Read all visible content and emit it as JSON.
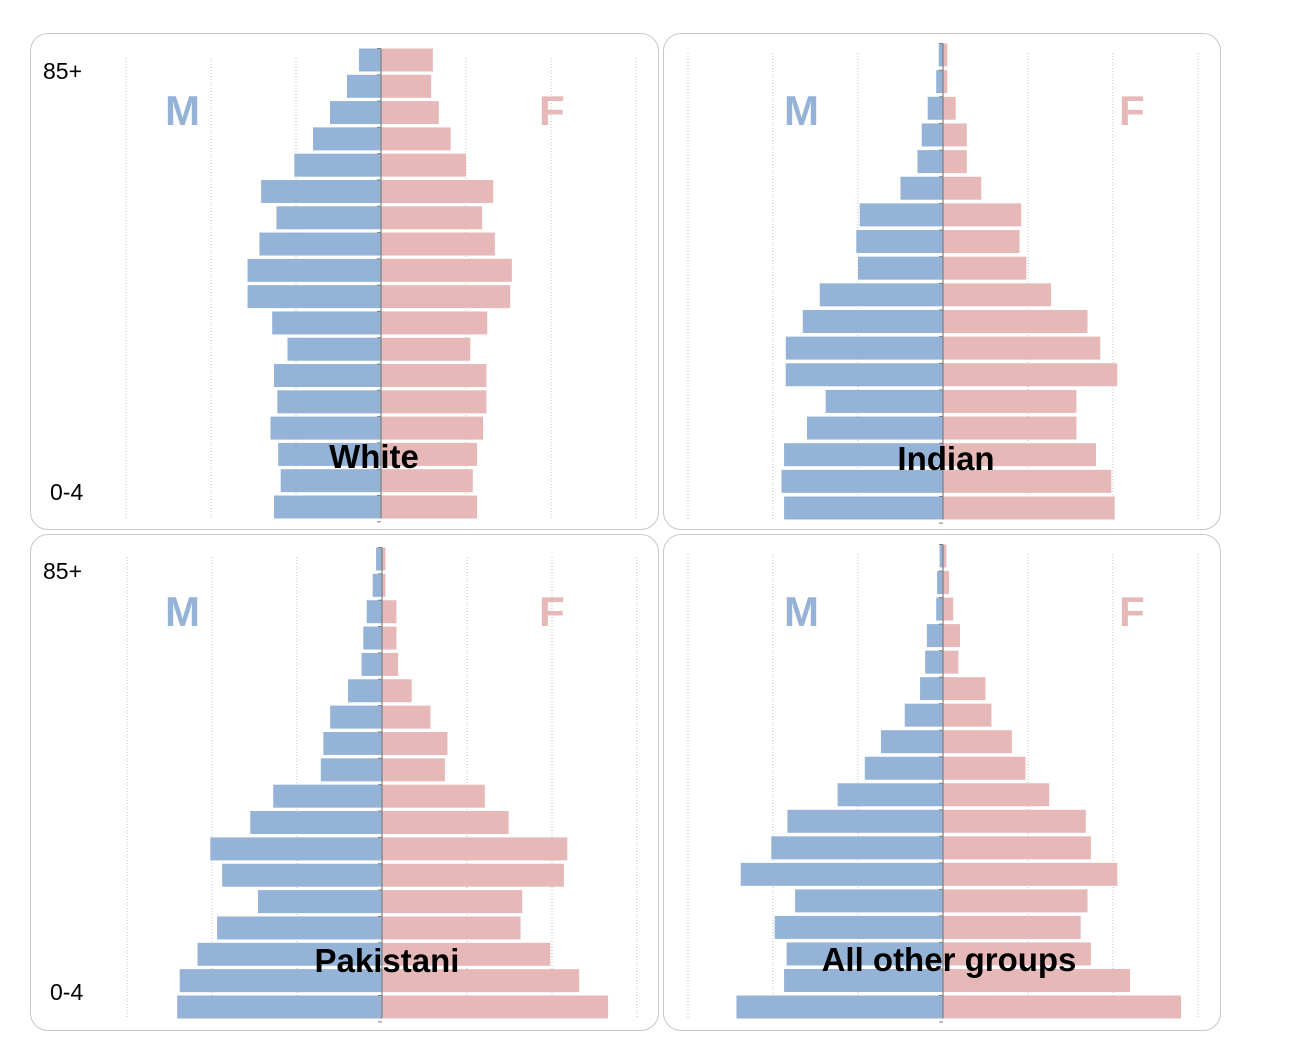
{
  "age_labels": {
    "top": "85+",
    "bottom": "0-4"
  },
  "sex_labels": {
    "male": "M",
    "female": "F"
  },
  "colors": {
    "male": "#95b3d7",
    "female": "#e6b9b8",
    "grid": "#bfbfbf",
    "axis": "#7f7f7f"
  },
  "chart_data": [
    {
      "type": "bar",
      "orientation": "population-pyramid",
      "title": "White",
      "xlim": [
        -3,
        3
      ],
      "categories_top_to_bottom": [
        "85+",
        "",
        "",
        "",
        "",
        "",
        "",
        "",
        "",
        "",
        "",
        "",
        "",
        "",
        "",
        "",
        "",
        "0-4"
      ],
      "series": [
        {
          "name": "M",
          "values": [
            0.26,
            0.4,
            0.6,
            0.8,
            1.02,
            1.41,
            1.23,
            1.43,
            1.57,
            1.57,
            1.28,
            1.1,
            1.26,
            1.22,
            1.3,
            1.21,
            1.18,
            1.26
          ]
        },
        {
          "name": "F",
          "values": [
            0.61,
            0.59,
            0.68,
            0.82,
            1.0,
            1.32,
            1.19,
            1.34,
            1.54,
            1.52,
            1.25,
            1.05,
            1.24,
            1.24,
            1.2,
            1.13,
            1.08,
            1.13
          ]
        }
      ]
    },
    {
      "type": "bar",
      "orientation": "population-pyramid",
      "title": "Indian",
      "xlim": [
        -3,
        3
      ],
      "categories_top_to_bottom": [
        "85+",
        "",
        "",
        "",
        "",
        "",
        "",
        "",
        "",
        "",
        "",
        "",
        "",
        "",
        "",
        "",
        "",
        "0-4"
      ],
      "series": [
        {
          "name": "M",
          "values": [
            0.05,
            0.08,
            0.18,
            0.25,
            0.3,
            0.5,
            0.98,
            1.02,
            1.0,
            1.45,
            1.65,
            1.85,
            1.85,
            1.38,
            1.6,
            1.87,
            1.9,
            1.87
          ]
        },
        {
          "name": "F",
          "values": [
            0.05,
            0.05,
            0.15,
            0.28,
            0.28,
            0.45,
            0.92,
            0.9,
            0.98,
            1.27,
            1.7,
            1.85,
            2.05,
            1.57,
            1.57,
            1.8,
            1.98,
            2.02
          ]
        }
      ]
    },
    {
      "type": "bar",
      "orientation": "population-pyramid",
      "title": "Pakistani",
      "xlim": [
        -3,
        3
      ],
      "categories_top_to_bottom": [
        "85+",
        "",
        "",
        "",
        "",
        "",
        "",
        "",
        "",
        "",
        "",
        "",
        "",
        "",
        "",
        "",
        "",
        "0-4"
      ],
      "series": [
        {
          "name": "M",
          "values": [
            0.07,
            0.11,
            0.18,
            0.22,
            0.24,
            0.4,
            0.61,
            0.69,
            0.72,
            1.28,
            1.55,
            2.02,
            1.88,
            1.46,
            1.94,
            2.17,
            2.38,
            2.41
          ]
        },
        {
          "name": "F",
          "values": [
            0.04,
            0.04,
            0.17,
            0.17,
            0.19,
            0.35,
            0.57,
            0.77,
            0.74,
            1.21,
            1.49,
            2.18,
            2.14,
            1.65,
            1.63,
            1.98,
            2.32,
            2.66
          ]
        }
      ]
    },
    {
      "type": "bar",
      "orientation": "population-pyramid",
      "title": "All other groups",
      "xlim": [
        -3,
        3
      ],
      "categories_top_to_bottom": [
        "85+",
        "",
        "",
        "",
        "",
        "",
        "",
        "",
        "",
        "",
        "",
        "",
        "",
        "",
        "",
        "",
        "",
        "0-4"
      ],
      "series": [
        {
          "name": "M",
          "values": [
            0.04,
            0.07,
            0.08,
            0.19,
            0.21,
            0.27,
            0.45,
            0.73,
            0.92,
            1.24,
            1.83,
            2.02,
            2.38,
            1.74,
            1.98,
            1.84,
            1.87,
            2.43
          ]
        },
        {
          "name": "F",
          "values": [
            0.04,
            0.07,
            0.12,
            0.2,
            0.18,
            0.5,
            0.57,
            0.81,
            0.97,
            1.25,
            1.68,
            1.74,
            2.05,
            1.7,
            1.62,
            1.74,
            2.2,
            2.8
          ]
        }
      ]
    }
  ]
}
